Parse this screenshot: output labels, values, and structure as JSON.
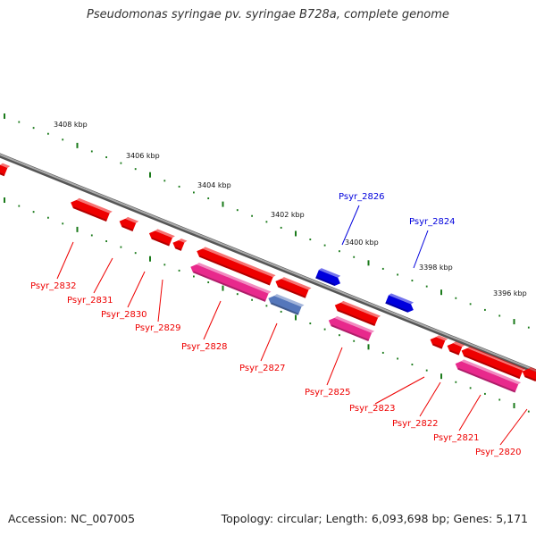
{
  "header": {
    "title": "Pseudomonas syringae pv. syringae B728a, complete genome"
  },
  "footer": {
    "accession": "Accession: NC_007005",
    "topology": "Topology: circular; Length: 6,093,698 bp; Genes: 5,171"
  },
  "colors": {
    "forward_gene": "#0000dd",
    "reverse_gene": "#ee0000",
    "cds": "#e8298c",
    "rna": "#5577bb",
    "backbone": "#888888",
    "tick_green": "#1a7a1a"
  },
  "ruler": {
    "labels": [
      "3408 kbp",
      "3406 kbp",
      "3404 kbp",
      "3402 kbp",
      "3400 kbp",
      "3398 kbp",
      "3396 kbp"
    ]
  },
  "genes": {
    "forward": [
      "Psyr_2826",
      "Psyr_2824"
    ],
    "reverse": [
      "Psyr_2832",
      "Psyr_2831",
      "Psyr_2830",
      "Psyr_2829",
      "Psyr_2828",
      "Psyr_2827",
      "Psyr_2825",
      "Psyr_2823",
      "Psyr_2822",
      "Psyr_2821",
      "Psyr_2820"
    ]
  }
}
